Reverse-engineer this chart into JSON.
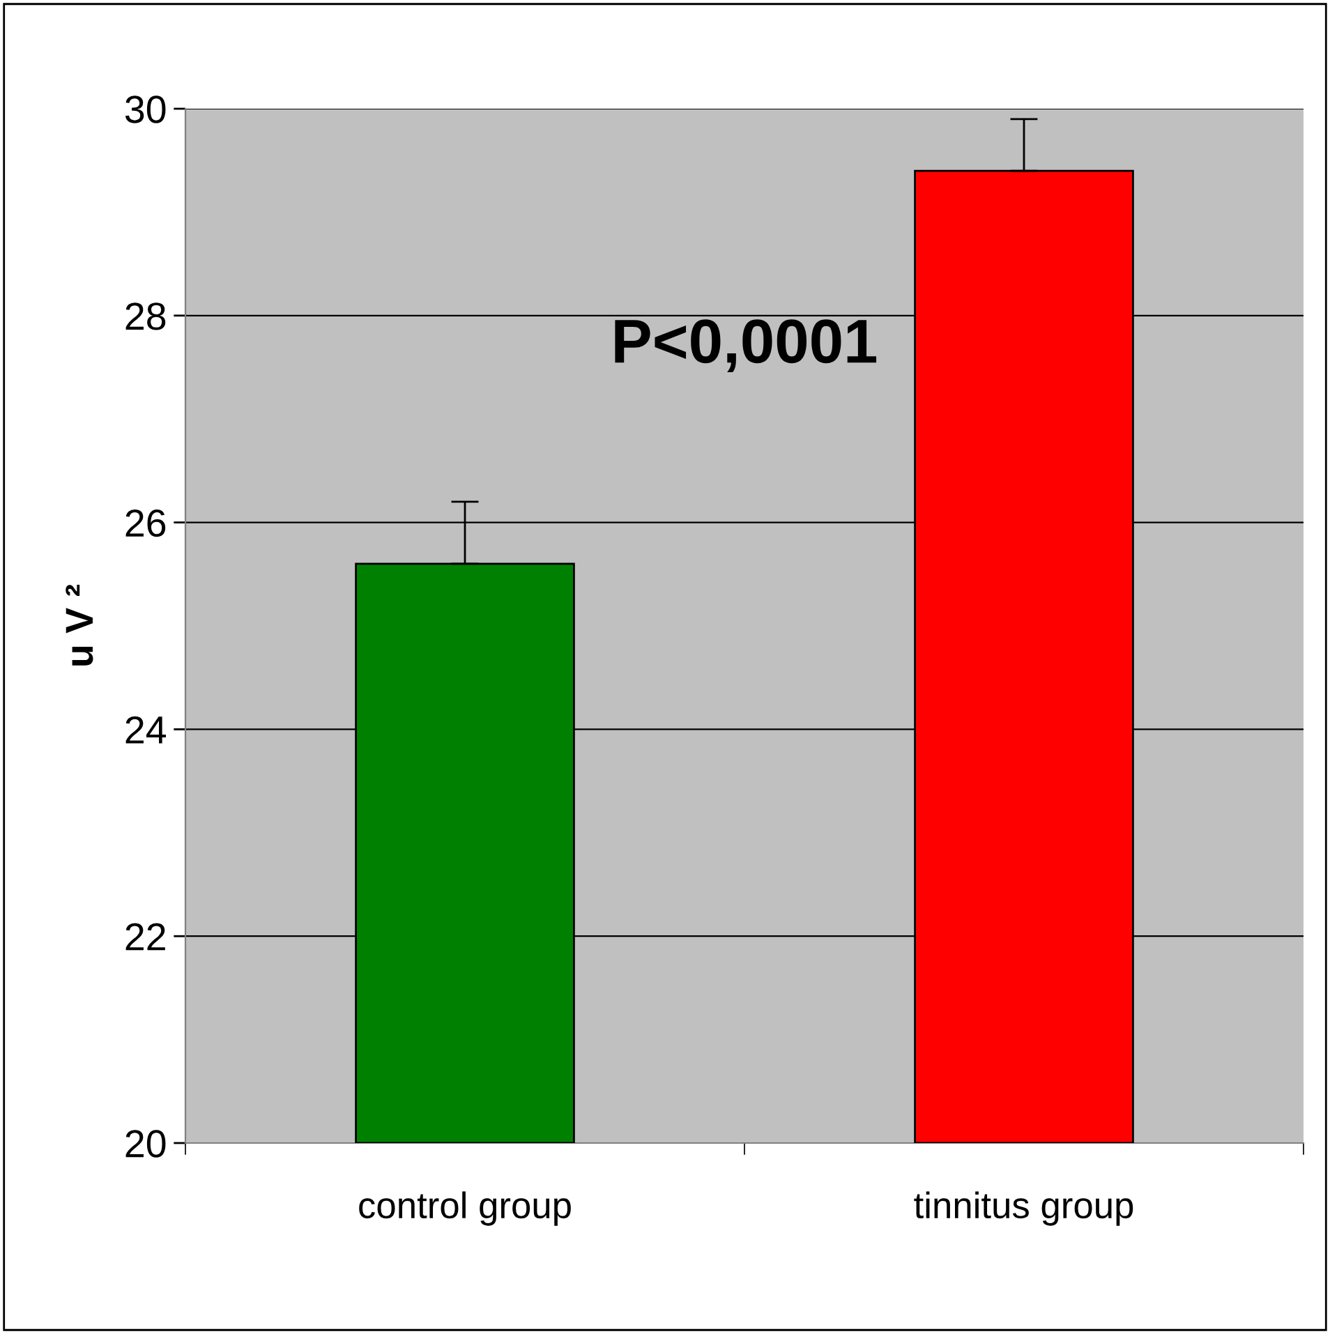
{
  "chart_data": {
    "type": "bar",
    "ylabel": "u V ²",
    "categories": [
      "control group",
      "tinnitus group"
    ],
    "values": [
      25.6,
      29.4
    ],
    "colors": [
      "#008000",
      "#ff0000"
    ],
    "errors": [
      [
        25.6,
        26.2
      ],
      [
        29.4,
        29.9
      ]
    ],
    "ylim": [
      20,
      30
    ],
    "yticks": [
      20,
      22,
      24,
      26,
      28,
      30
    ],
    "grid": "y",
    "annotations": [
      "P<0,0001"
    ]
  }
}
